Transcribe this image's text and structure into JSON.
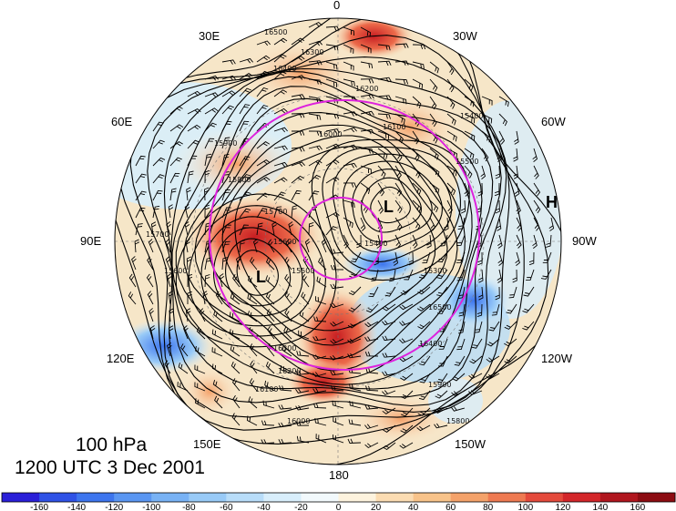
{
  "map": {
    "projection": "north polar stereographic",
    "level_label": "100 hPa",
    "time_label": "1200 UTC 3 Dec 2001",
    "longitude_labels": [
      "0",
      "30W",
      "60W",
      "90W",
      "120W",
      "150W",
      "180",
      "150E",
      "120E",
      "90E",
      "60E",
      "30E"
    ],
    "contour_labels": [
      "16500",
      "16400",
      "16300",
      "16200",
      "16100",
      "16000",
      "15900",
      "15800",
      "15700",
      "15600",
      "15500",
      "15400",
      "15300"
    ],
    "pressure_systems": [
      {
        "type": "L",
        "name": "low-near-pole"
      },
      {
        "type": "L",
        "name": "low-siberia"
      },
      {
        "type": "H",
        "name": "high-east"
      }
    ],
    "overlay_color": "#dd22dd"
  },
  "colorbar": {
    "ticks": [
      "-160",
      "-140",
      "-120",
      "-100",
      "-80",
      "-60",
      "-40",
      "-20",
      "0",
      "20",
      "40",
      "60",
      "80",
      "100",
      "120",
      "140",
      "160"
    ],
    "colors": [
      "#2a1fd8",
      "#2f52e6",
      "#3d75ee",
      "#5a96f2",
      "#78b2f5",
      "#98caf7",
      "#b8ddf9",
      "#d8eefb",
      "#f2f9fc",
      "#fdf3de",
      "#fbdcb2",
      "#f8c38a",
      "#f4a26a",
      "#ee7a52",
      "#e44a3c",
      "#d3262a",
      "#b0161e",
      "#8c0c12"
    ]
  }
}
